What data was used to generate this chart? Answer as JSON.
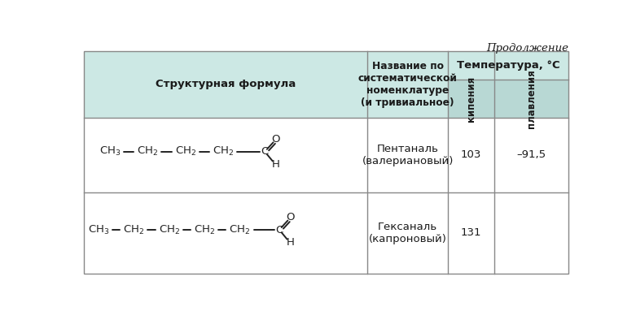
{
  "title_continuation": "Продолжение",
  "header_col1": "Структурная формула",
  "header_col2": "Название по\nсистематической\nноменклатуре\n(и тривиальное)",
  "header_col3": "Температура, °C",
  "header_col3a": "кипения",
  "header_col3b": "плавления",
  "row1_name": "Пентаналь\n(валериановый)",
  "row1_bp": "103",
  "row1_mp": "–91,5",
  "row2_name": "Гексаналь\n(капроновый)",
  "row2_bp": "131",
  "row2_mp": "",
  "header_bg": "#cce8e4",
  "header_bg2": "#b8d8d4",
  "white_bg": "#ffffff",
  "border_color": "#888888",
  "text_color": "#1a1a1a"
}
